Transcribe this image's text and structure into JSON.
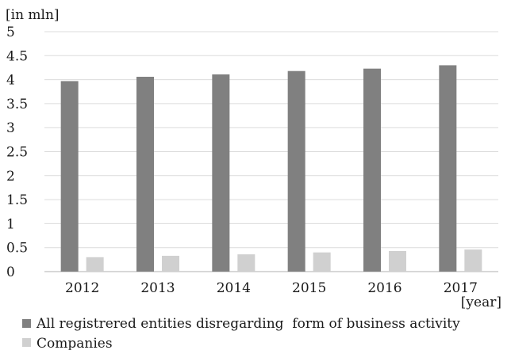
{
  "chart_data": {
    "type": "bar",
    "title": "",
    "ylabel": "[in mln]",
    "xlabel": "[year]",
    "categories": [
      "2012",
      "2013",
      "2014",
      "2015",
      "2016",
      "2017"
    ],
    "ylim": [
      0,
      5
    ],
    "yticks": [
      "0",
      "0.5",
      "1",
      "1.5",
      "2",
      "2.5",
      "3",
      "3.5",
      "4",
      "4.5",
      "5"
    ],
    "grid": true,
    "legend_position": "bottom",
    "series": [
      {
        "name": "All registrered entities disregarding  form of business activity",
        "color": "#808080",
        "values": [
          3.97,
          4.06,
          4.11,
          4.18,
          4.23,
          4.3
        ]
      },
      {
        "name": "Companies",
        "color": "#d0d0d0",
        "values": [
          0.3,
          0.33,
          0.36,
          0.4,
          0.43,
          0.46
        ]
      }
    ]
  }
}
